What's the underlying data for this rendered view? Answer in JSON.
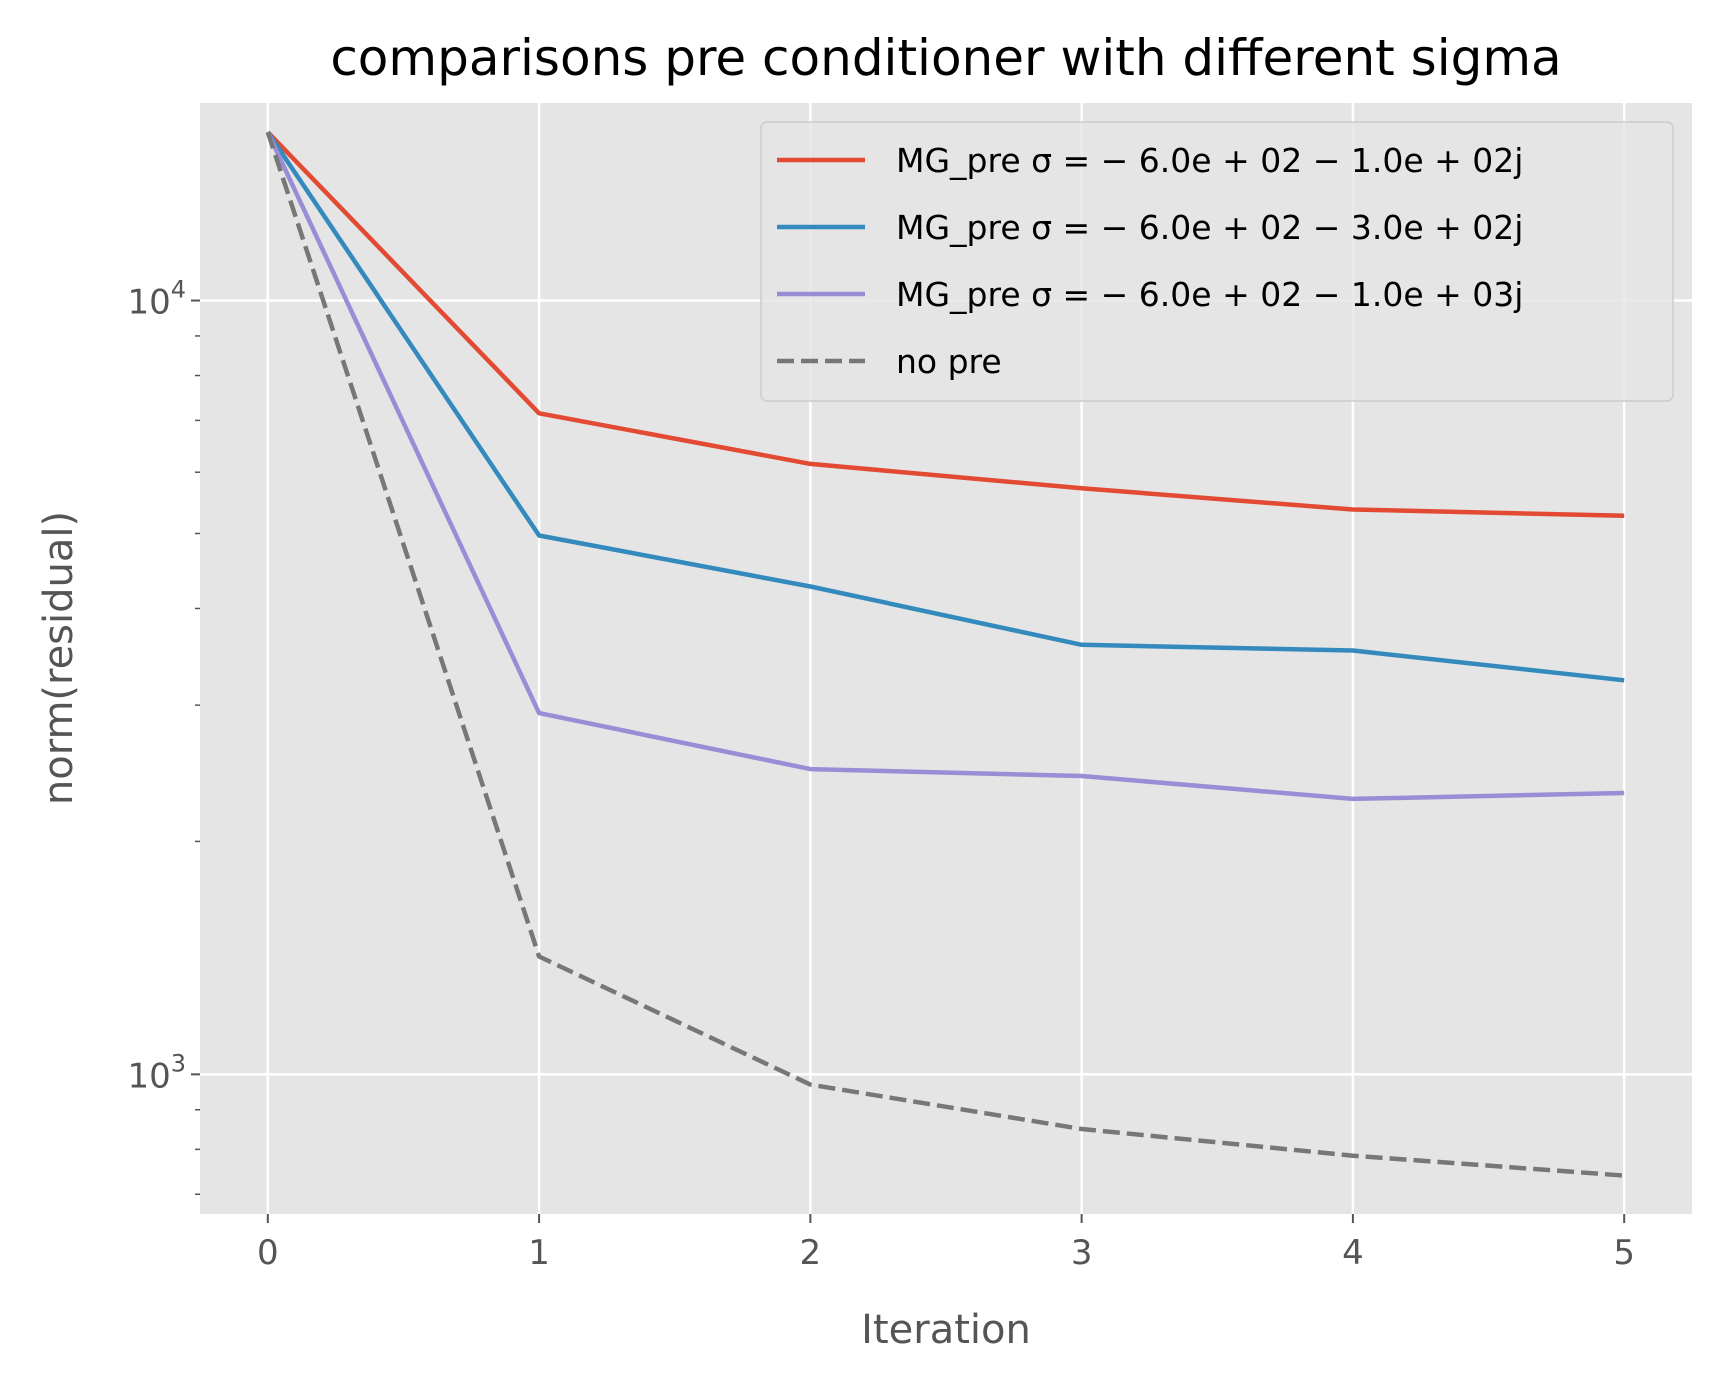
{
  "chart_data": {
    "type": "line",
    "title": "comparisons pre conditioner with different sigma",
    "xlabel": "Iteration",
    "ylabel": "norm(residual)",
    "x": [
      0,
      1,
      2,
      3,
      4,
      5
    ],
    "xticks": [
      "0",
      "1",
      "2",
      "3",
      "4",
      "5"
    ],
    "xlim": [
      -0.25,
      5.25
    ],
    "yscale": "log",
    "ylim": [
      660,
      18000
    ],
    "yticks": [
      {
        "value": 1000,
        "base": "10",
        "exp": "3"
      },
      {
        "value": 10000,
        "base": "10",
        "exp": "4"
      }
    ],
    "grid": true,
    "legend_position": "top-right",
    "series": [
      {
        "name": "MG_pre σ = − 6.0e + 02 − 1.0e + 02j",
        "color": "#E24A33",
        "dash": "solid",
        "values": [
          16500,
          7150,
          6150,
          5720,
          5370,
          5270
        ]
      },
      {
        "name": "MG_pre σ = − 6.0e + 02 − 3.0e + 02j",
        "color": "#348ABD",
        "dash": "solid",
        "values": [
          16500,
          4970,
          4270,
          3590,
          3530,
          3230
        ]
      },
      {
        "name": "MG_pre σ = − 6.0e + 02 − 1.0e + 03j",
        "color": "#988ED5",
        "dash": "solid",
        "values": [
          16500,
          2930,
          2480,
          2430,
          2270,
          2310
        ]
      },
      {
        "name": "no pre",
        "color": "#777777",
        "dash": "dashed",
        "values": [
          16500,
          1420,
          970,
          850,
          785,
          740
        ]
      }
    ]
  }
}
